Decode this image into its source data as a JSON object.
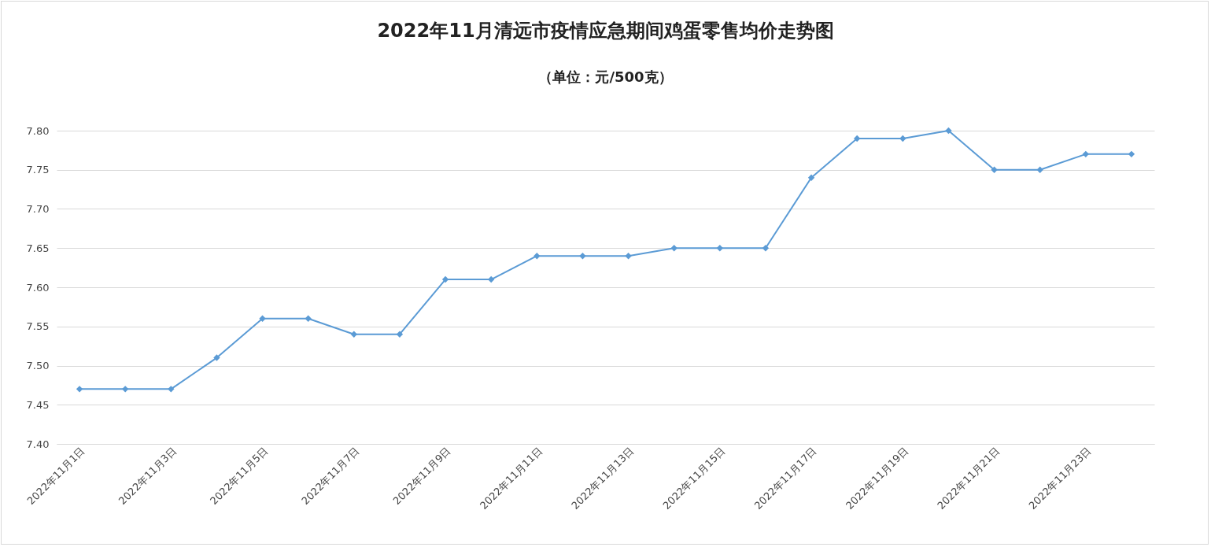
{
  "chart_data": {
    "type": "line",
    "title": "2022年11月清远市疫情应急期间鸡蛋零售均价走势图",
    "subtitle": "（单位：元/500克）",
    "categories": [
      "2022年11月1日",
      null,
      "2022年11月3日",
      null,
      "2022年11月5日",
      null,
      "2022年11月7日",
      null,
      "2022年11月9日",
      null,
      "2022年11月11日",
      null,
      "2022年11月13日",
      null,
      "2022年11月15日",
      null,
      "2022年11月17日",
      null,
      "2022年11月19日",
      null,
      "2022年11月21日",
      null,
      "2022年11月23日",
      null
    ],
    "series": [
      {
        "color": "#5b9bd5",
        "values": [
          7.47,
          7.47,
          7.47,
          7.51,
          7.56,
          7.56,
          7.54,
          7.54,
          7.61,
          7.61,
          7.64,
          7.64,
          7.64,
          7.65,
          7.65,
          7.65,
          7.74,
          7.79,
          7.79,
          7.8,
          7.75,
          7.75,
          7.77,
          7.77
        ]
      }
    ],
    "ylim": [
      7.4,
      7.8
    ],
    "yticks": [
      {
        "value": 7.4,
        "label": "7.40"
      },
      {
        "value": 7.45,
        "label": "7.45"
      },
      {
        "value": 7.5,
        "label": "7.50"
      },
      {
        "value": 7.55,
        "label": "7.55"
      },
      {
        "value": 7.6,
        "label": "7.60"
      },
      {
        "value": 7.65,
        "label": "7.65"
      },
      {
        "value": 7.7,
        "label": "7.70"
      },
      {
        "value": 7.75,
        "label": "7.75"
      },
      {
        "value": 7.8,
        "label": "7.80"
      }
    ],
    "grid": "y",
    "marker": "diamond",
    "line_style": "solid"
  }
}
